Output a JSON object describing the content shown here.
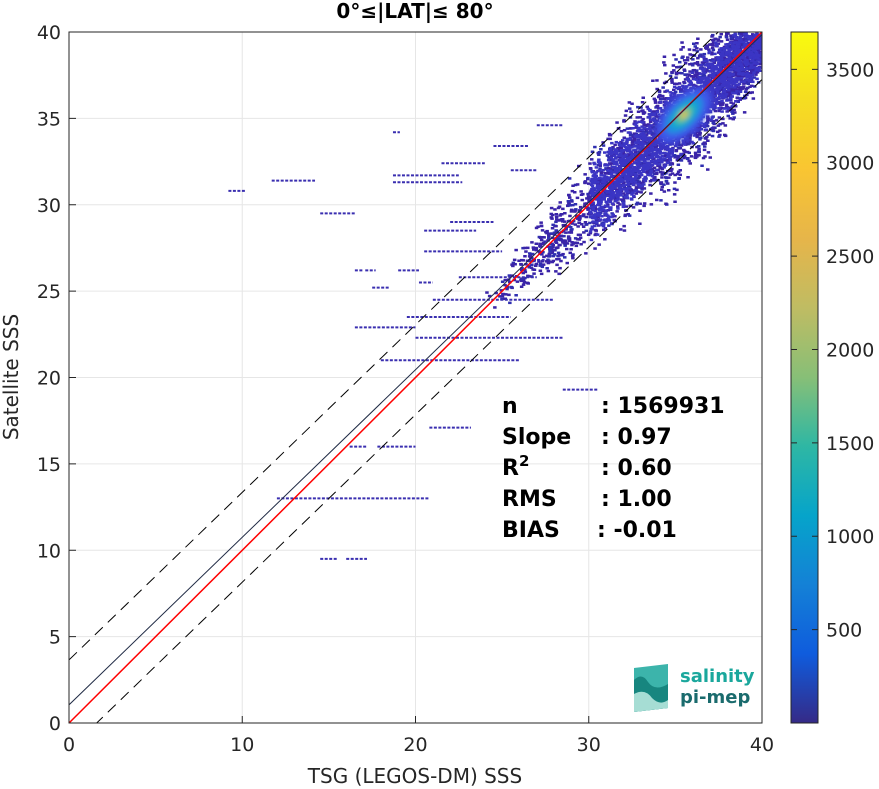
{
  "chart_data": {
    "type": "heatmap",
    "title": "0°≤|LAT|≤ 80°",
    "xlabel": "TSG (LEGOS-DM) SSS",
    "ylabel": "Satellite SSS",
    "xlim": [
      0,
      40
    ],
    "ylim": [
      0,
      40
    ],
    "x_ticks": [
      "0",
      "10",
      "20",
      "30",
      "40"
    ],
    "y_ticks": [
      "0",
      "5",
      "10",
      "15",
      "20",
      "25",
      "30",
      "35",
      "40"
    ],
    "grid": true,
    "colorbar": {
      "colormap": "parula",
      "range": [
        0,
        3700
      ],
      "ticks": [
        "500",
        "1000",
        "1500",
        "2000",
        "2500",
        "3000",
        "3500"
      ],
      "tick_values": [
        500,
        1000,
        1500,
        2000,
        2500,
        3000,
        3500
      ]
    },
    "density_peak": {
      "x": 35.5,
      "y": 35.2,
      "count": 3700
    },
    "lines": [
      {
        "name": "1:1",
        "color": "#ff0000",
        "slope": 1.0,
        "intercept": 0.0
      },
      {
        "name": "fit",
        "color": "#1f2a44",
        "slope": 0.97,
        "intercept": 1.05
      },
      {
        "name": "fit+3rms",
        "color": "#000000",
        "dash": true,
        "slope": 0.97,
        "intercept": 3.65
      },
      {
        "name": "fit-3rms",
        "color": "#000000",
        "dash": true,
        "slope": 0.97,
        "intercept": -1.55
      }
    ],
    "stats": [
      {
        "label": "n",
        "value": ": 1569931"
      },
      {
        "label": "Slope",
        "value": ": 0.97"
      },
      {
        "label": "R",
        "sup": "2",
        "value": ": 0.60"
      },
      {
        "label": "RMS",
        "value": ": 1.00"
      },
      {
        "label": "BIAS",
        "value": ": -0.01"
      }
    ],
    "horizontal_streaks": [
      {
        "x0": 9.2,
        "x1": 10.2,
        "y": 30.8
      },
      {
        "x0": 11.7,
        "x1": 14.2,
        "y": 31.4
      },
      {
        "x0": 14.5,
        "x1": 16.5,
        "y": 29.5
      },
      {
        "x0": 12.0,
        "x1": 20.8,
        "y": 13.0
      },
      {
        "x0": 16.2,
        "x1": 17.2,
        "y": 16.0
      },
      {
        "x0": 17.8,
        "x1": 20.0,
        "y": 16.0
      },
      {
        "x0": 14.5,
        "x1": 15.5,
        "y": 9.5
      },
      {
        "x0": 16.0,
        "x1": 17.2,
        "y": 9.5
      },
      {
        "x0": 20.8,
        "x1": 23.2,
        "y": 17.1
      },
      {
        "x0": 16.5,
        "x1": 17.0,
        "y": 26.2
      },
      {
        "x0": 17.1,
        "x1": 17.7,
        "y": 26.2
      },
      {
        "x0": 19.0,
        "x1": 20.2,
        "y": 26.2
      },
      {
        "x0": 20.2,
        "x1": 21.0,
        "y": 25.5
      },
      {
        "x0": 16.5,
        "x1": 20.0,
        "y": 22.9
      },
      {
        "x0": 18.0,
        "x1": 26.0,
        "y": 21.0
      },
      {
        "x0": 20.0,
        "x1": 28.5,
        "y": 22.3
      },
      {
        "x0": 19.5,
        "x1": 25.5,
        "y": 23.5
      },
      {
        "x0": 21.0,
        "x1": 28.0,
        "y": 24.5
      },
      {
        "x0": 22.5,
        "x1": 27.0,
        "y": 25.8
      },
      {
        "x0": 20.5,
        "x1": 25.0,
        "y": 27.3
      },
      {
        "x0": 20.5,
        "x1": 23.5,
        "y": 28.5
      },
      {
        "x0": 22.0,
        "x1": 24.5,
        "y": 29.0
      },
      {
        "x0": 21.5,
        "x1": 24.0,
        "y": 32.4
      },
      {
        "x0": 18.7,
        "x1": 22.5,
        "y": 31.7
      },
      {
        "x0": 18.7,
        "x1": 22.7,
        "y": 31.3
      },
      {
        "x0": 24.5,
        "x1": 26.5,
        "y": 33.4
      },
      {
        "x0": 25.5,
        "x1": 27.0,
        "y": 32.0
      },
      {
        "x0": 27.0,
        "x1": 28.5,
        "y": 34.6
      },
      {
        "x0": 28.5,
        "x1": 30.5,
        "y": 19.3
      },
      {
        "x0": 26.5,
        "x1": 27.5,
        "y": 26.8
      },
      {
        "x0": 17.5,
        "x1": 18.5,
        "y": 25.2
      },
      {
        "x0": 18.7,
        "x1": 19.1,
        "y": 34.2
      }
    ]
  }
}
